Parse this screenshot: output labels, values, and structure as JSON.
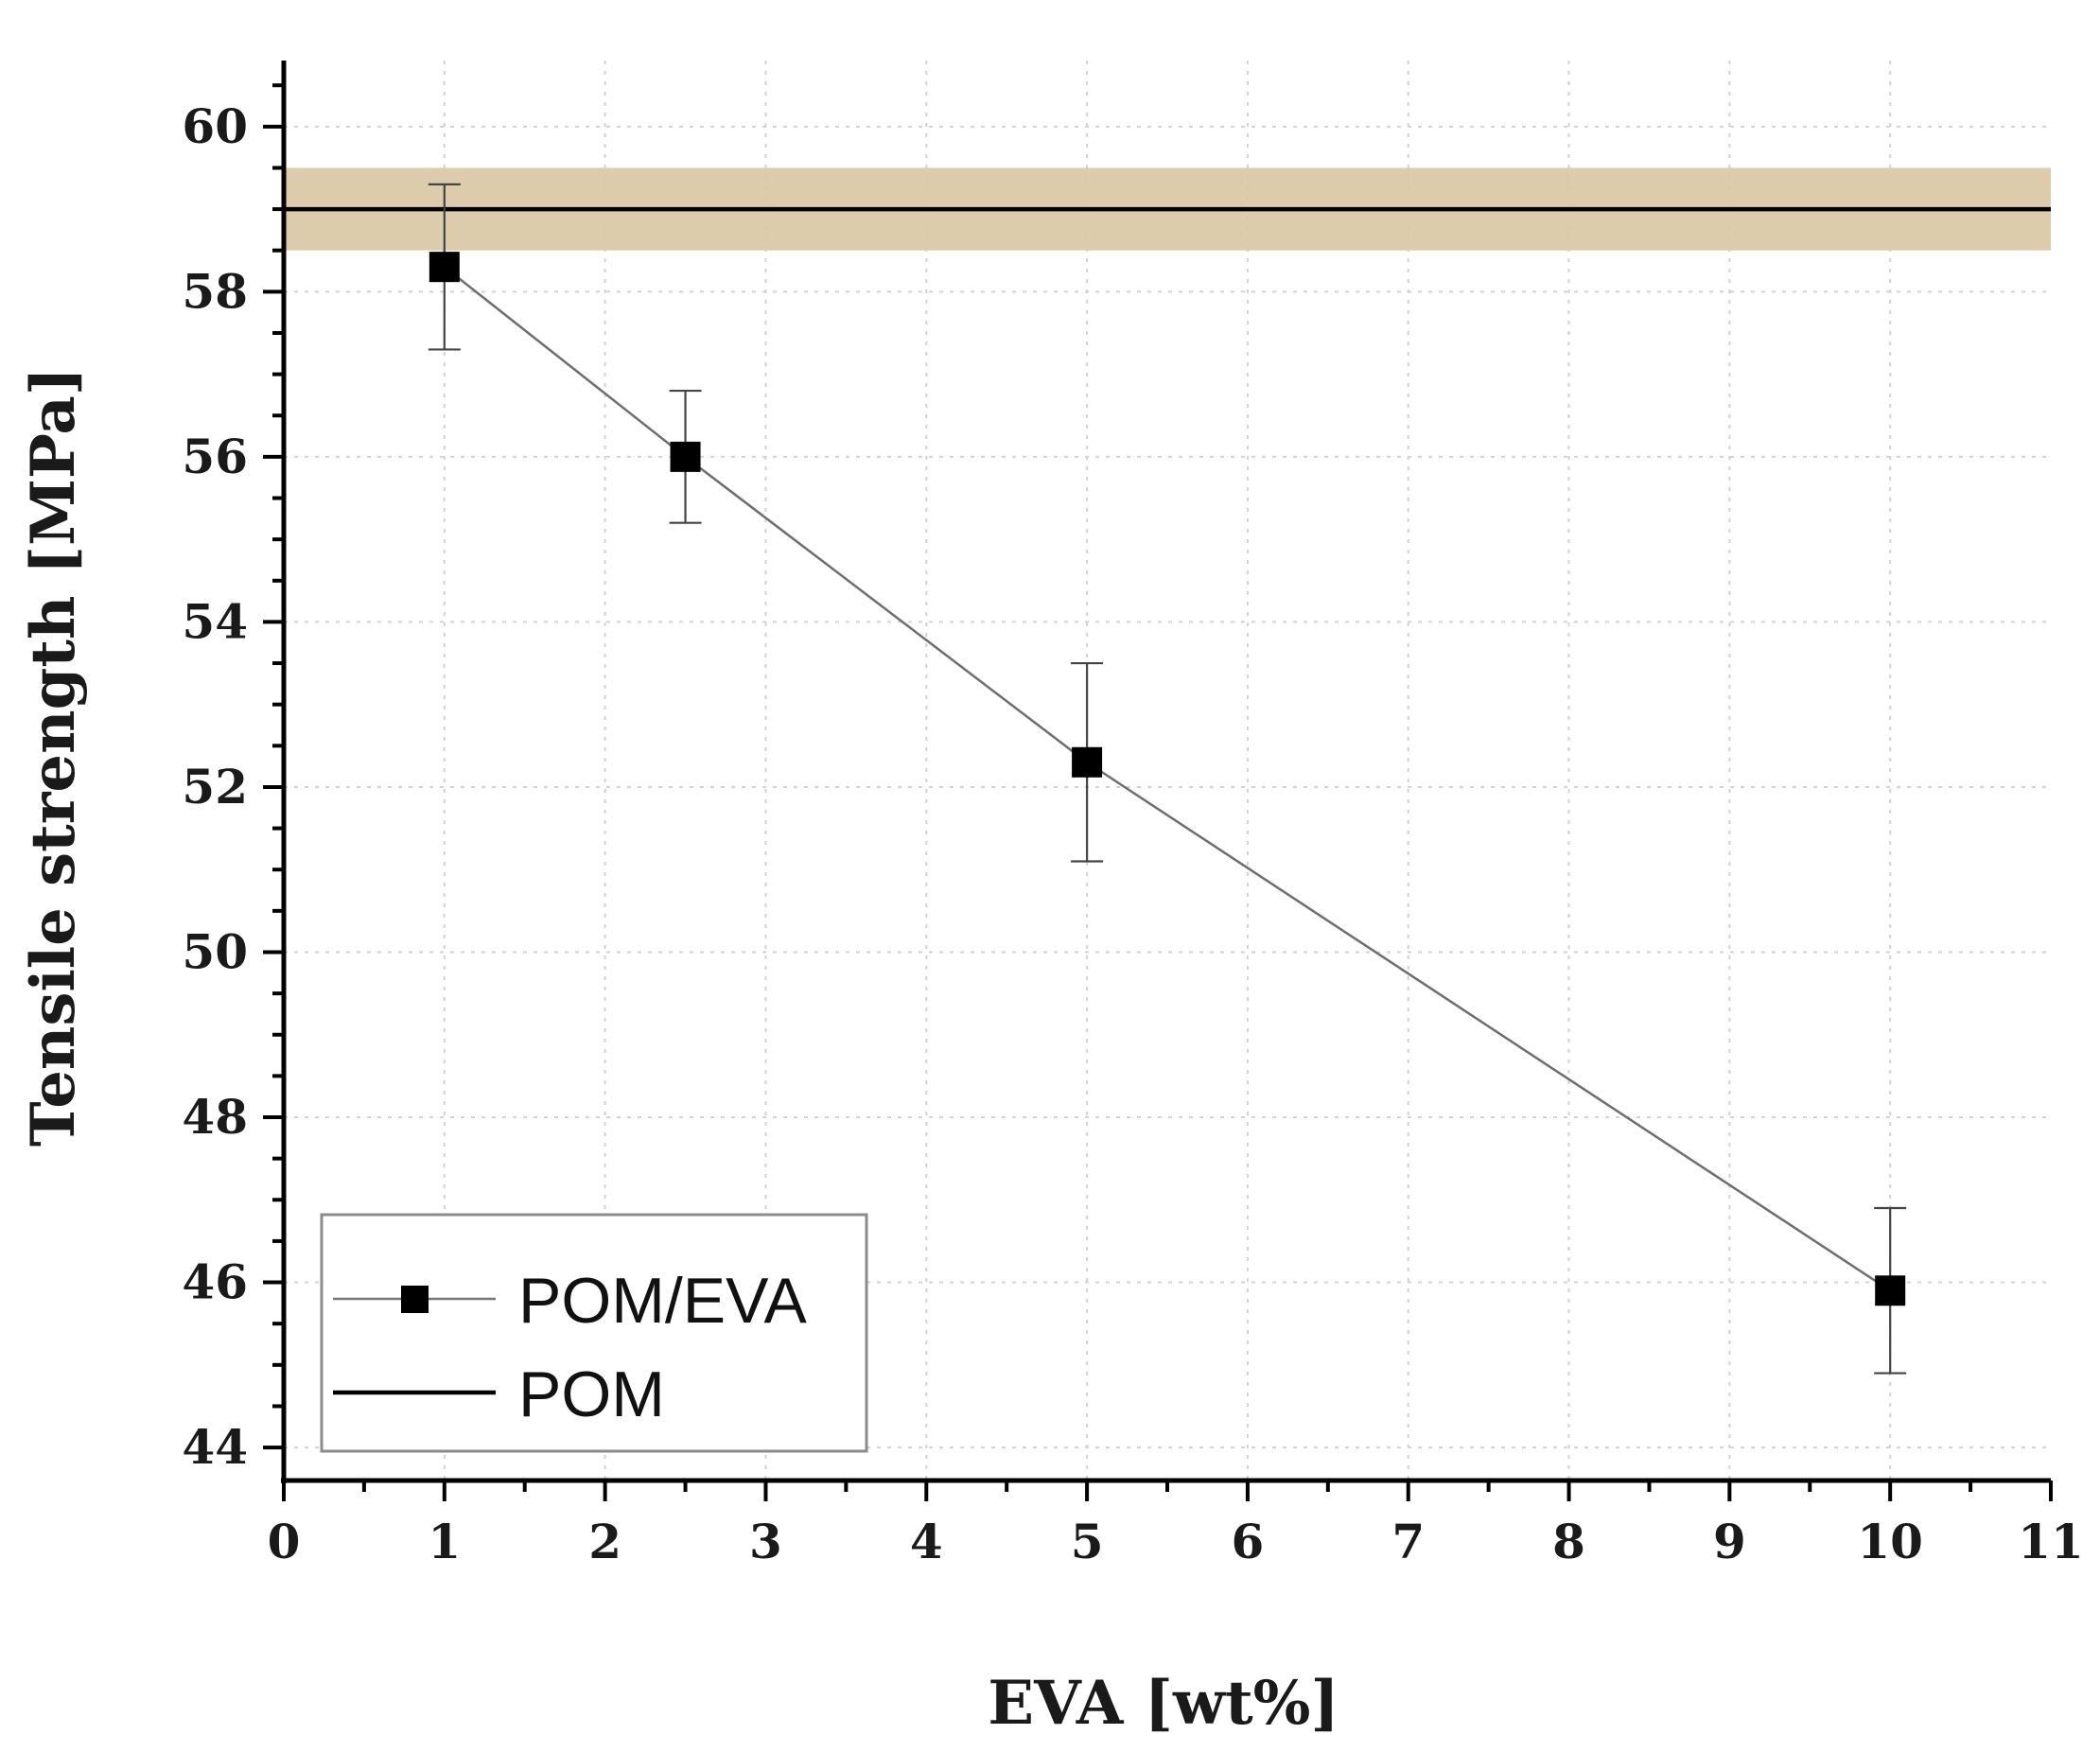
{
  "chart_data": {
    "type": "line",
    "title": "",
    "xlabel": "EVA [wt%]",
    "ylabel": "Tensile strength [MPa]",
    "xlim": [
      0,
      11
    ],
    "ylim": [
      43.6,
      60.8
    ],
    "xticks": [
      0,
      1,
      2,
      3,
      4,
      5,
      6,
      7,
      8,
      9,
      10,
      11
    ],
    "yticks": [
      44,
      46,
      48,
      50,
      52,
      54,
      56,
      58,
      60
    ],
    "grid": true,
    "legend_position": "bottom-left",
    "series": [
      {
        "name": "POM/EVA",
        "marker": "square",
        "color": "#000000",
        "x": [
          1,
          2.5,
          5,
          10
        ],
        "y": [
          58.3,
          56.0,
          52.3,
          45.9
        ],
        "error": [
          1.0,
          0.8,
          1.2,
          1.0
        ]
      },
      {
        "name": "POM",
        "kind": "reference-line",
        "color": "#000000",
        "y": 59.0,
        "band": [
          58.5,
          59.5
        ],
        "band_color": "#d9c8a4"
      }
    ]
  }
}
